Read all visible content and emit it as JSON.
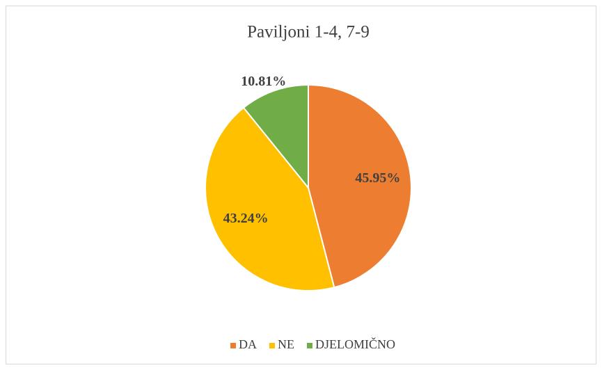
{
  "chart_data": {
    "type": "pie",
    "title": "Paviljoni 1-4, 7-9",
    "categories": [
      "DA",
      "NE",
      "DJELOMIČNO"
    ],
    "values": [
      45.95,
      43.24,
      10.81
    ],
    "value_labels": [
      "45.95%",
      "43.24%",
      "10.81%"
    ],
    "colors": [
      "#ED7D31",
      "#FFC000",
      "#70AD47"
    ],
    "legend": "bottom"
  }
}
